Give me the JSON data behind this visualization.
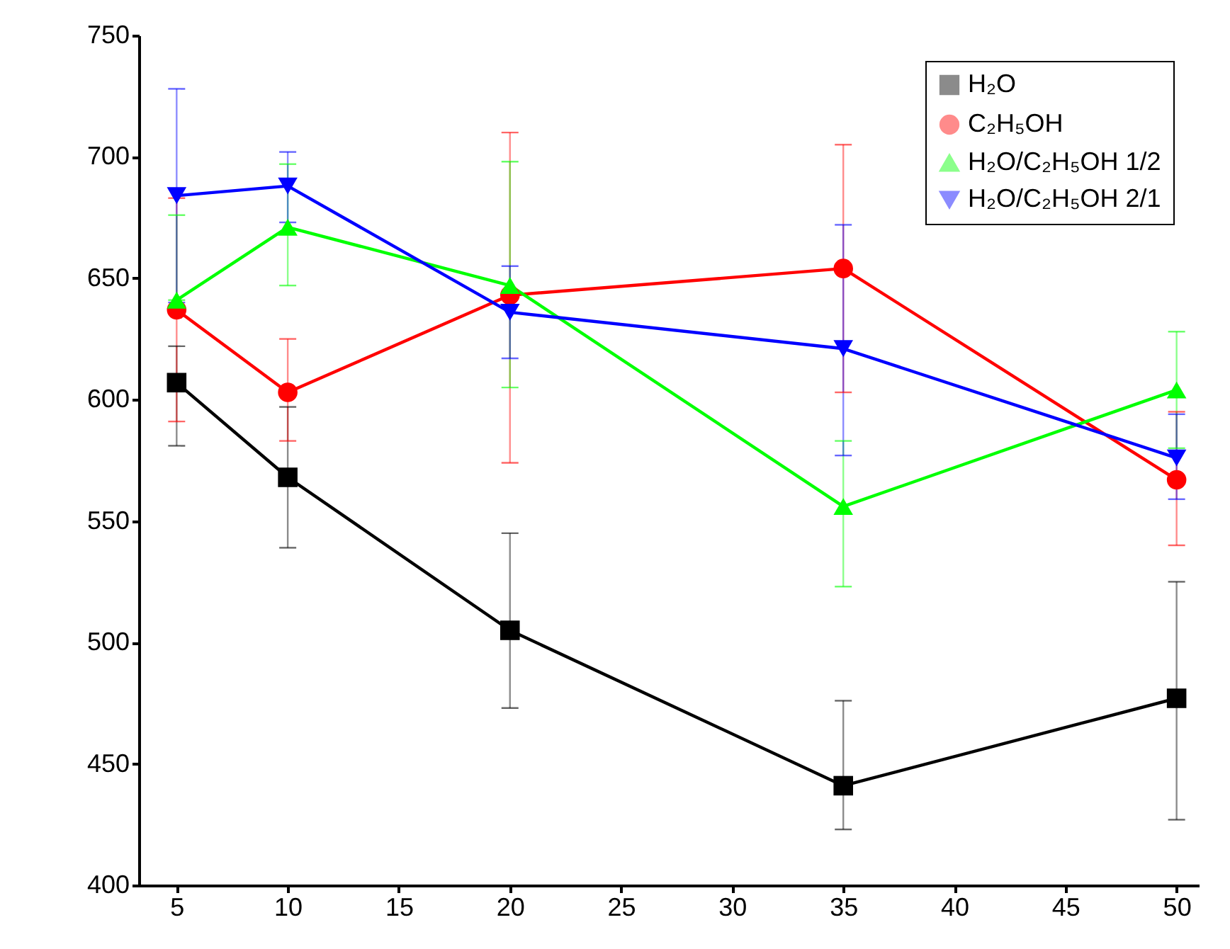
{
  "chart_data": {
    "type": "line",
    "x": [
      5,
      10,
      20,
      35,
      50
    ],
    "xlim": [
      3.3,
      51
    ],
    "xticks": [
      5,
      10,
      15,
      20,
      25,
      30,
      35,
      40,
      45,
      50
    ],
    "ylim": [
      400,
      750
    ],
    "yticks": [
      400,
      450,
      500,
      550,
      600,
      650,
      700,
      750
    ],
    "grid": false,
    "legend": "top right",
    "series": [
      {
        "name": "H₂O",
        "color": "#000000",
        "marker": "square",
        "values": [
          607,
          568,
          505,
          441,
          477
        ],
        "errors": [
          [
            581,
            622
          ],
          [
            539,
            597
          ],
          [
            473,
            545
          ],
          [
            423,
            476
          ],
          [
            427,
            525
          ]
        ]
      },
      {
        "name": "C₂H₅OH",
        "color": "#ff0000",
        "marker": "circle",
        "values": [
          637,
          603,
          643,
          654,
          567
        ],
        "errors": [
          [
            591,
            683
          ],
          [
            583,
            625
          ],
          [
            574,
            710
          ],
          [
            603,
            705
          ],
          [
            540,
            595
          ]
        ]
      },
      {
        "name": "H₂O/C₂H₅OH 1/2",
        "color": "#00ff00",
        "marker": "triangle",
        "values": [
          641,
          671,
          647,
          556,
          604
        ],
        "errors": [
          [
            641,
            676
          ],
          [
            647,
            697
          ],
          [
            605,
            698
          ],
          [
            523,
            583
          ],
          [
            580,
            628
          ]
        ]
      },
      {
        "name": "H₂O/C₂H₅OH 2/1",
        "color": "#0000ff",
        "marker": "triangle-down",
        "values": [
          684,
          688,
          636,
          621,
          576
        ],
        "errors": [
          [
            640,
            728
          ],
          [
            673,
            702
          ],
          [
            617,
            655
          ],
          [
            577,
            672
          ],
          [
            559,
            594
          ]
        ]
      }
    ]
  }
}
